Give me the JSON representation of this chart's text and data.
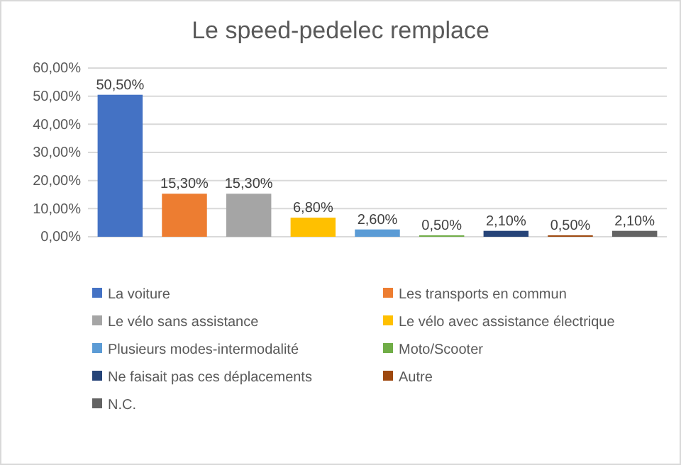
{
  "chart_data": {
    "type": "bar",
    "title": "Le speed-pedelec remplace",
    "categories": [
      null,
      null,
      null,
      null,
      null,
      null,
      null,
      null,
      null
    ],
    "series": [
      {
        "name": "La voiture",
        "color": "#4472c4",
        "values": [
          50.5,
          null,
          null,
          null,
          null,
          null,
          null,
          null,
          null
        ],
        "value_labels": [
          "50,50%",
          null,
          null,
          null,
          null,
          null,
          null,
          null,
          null
        ]
      },
      {
        "name": "Les transports en commun",
        "color": "#ed7d31",
        "values": [
          null,
          15.3,
          null,
          null,
          null,
          null,
          null,
          null,
          null
        ],
        "value_labels": [
          null,
          "15,30%",
          null,
          null,
          null,
          null,
          null,
          null,
          null
        ]
      },
      {
        "name": "Le vélo sans assistance",
        "color": "#a5a5a5",
        "values": [
          null,
          null,
          15.3,
          null,
          null,
          null,
          null,
          null,
          null
        ],
        "value_labels": [
          null,
          null,
          "15,30%",
          null,
          null,
          null,
          null,
          null,
          null
        ]
      },
      {
        "name": "Le vélo avec assistance électrique",
        "color": "#ffc000",
        "values": [
          null,
          null,
          null,
          6.8,
          null,
          null,
          null,
          null,
          null
        ],
        "value_labels": [
          null,
          null,
          null,
          "6,80%",
          null,
          null,
          null,
          null,
          null
        ]
      },
      {
        "name": "Plusieurs modes-intermodalité",
        "color": "#5b9bd5",
        "values": [
          null,
          null,
          null,
          null,
          2.6,
          null,
          null,
          null,
          null
        ],
        "value_labels": [
          null,
          null,
          null,
          null,
          "2,60%",
          null,
          null,
          null,
          null
        ]
      },
      {
        "name": "Moto/Scooter",
        "color": "#70ad47",
        "values": [
          null,
          null,
          null,
          null,
          null,
          0.5,
          null,
          null,
          null
        ],
        "value_labels": [
          null,
          null,
          null,
          null,
          null,
          "0,50%",
          null,
          null,
          null
        ]
      },
      {
        "name": "Ne faisait pas ces déplacements",
        "color": "#264478",
        "values": [
          null,
          null,
          null,
          null,
          null,
          null,
          2.1,
          null,
          null
        ],
        "value_labels": [
          null,
          null,
          null,
          null,
          null,
          null,
          "2,10%",
          null,
          null
        ]
      },
      {
        "name": "Autre",
        "color": "#9e480e",
        "values": [
          null,
          null,
          null,
          null,
          null,
          null,
          null,
          0.5,
          null
        ],
        "value_labels": [
          null,
          null,
          null,
          null,
          null,
          null,
          null,
          "0,50%",
          null
        ]
      },
      {
        "name": "N.C.",
        "color": "#636363",
        "values": [
          null,
          null,
          null,
          null,
          null,
          null,
          null,
          null,
          2.1
        ],
        "value_labels": [
          null,
          null,
          null,
          null,
          null,
          null,
          null,
          null,
          "2,10%"
        ]
      }
    ],
    "ylim": [
      0,
      60
    ],
    "yticks": [
      {
        "value": 0,
        "label": "0,00%"
      },
      {
        "value": 10,
        "label": "10,00%"
      },
      {
        "value": 20,
        "label": "20,00%"
      },
      {
        "value": 30,
        "label": "30,00%"
      },
      {
        "value": 40,
        "label": "40,00%"
      },
      {
        "value": 50,
        "label": "50,00%"
      },
      {
        "value": 60,
        "label": "60,00%"
      }
    ],
    "grid": "y",
    "legend": "bottom",
    "tick_labels": "y"
  }
}
